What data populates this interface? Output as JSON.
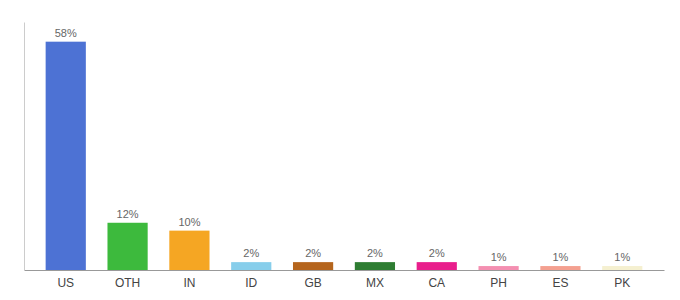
{
  "chart_data": {
    "type": "bar",
    "categories": [
      "US",
      "OTH",
      "IN",
      "ID",
      "GB",
      "MX",
      "CA",
      "PH",
      "ES",
      "PK"
    ],
    "values": [
      58,
      12,
      10,
      2,
      2,
      2,
      2,
      1,
      1,
      1
    ],
    "value_labels": [
      "58%",
      "12%",
      "10%",
      "2%",
      "2%",
      "2%",
      "2%",
      "1%",
      "1%",
      "1%"
    ],
    "colors": [
      "#4d72d4",
      "#3dba3d",
      "#f5a623",
      "#87ceeb",
      "#b5651d",
      "#2e7d32",
      "#e91e8c",
      "#f48fb1",
      "#f4a090",
      "#f5f0d0"
    ],
    "ylim": [
      0,
      63
    ],
    "data_labels": true,
    "tick_labels": "x"
  }
}
